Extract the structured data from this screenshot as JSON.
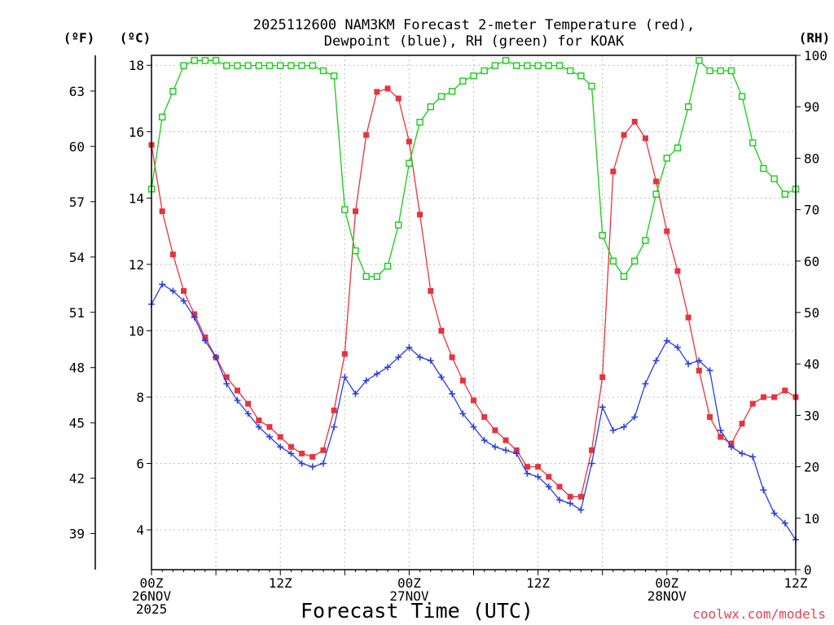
{
  "chart_data": {
    "type": "line",
    "title_line1": "2025112600 NAM3KM Forecast 2-meter Temperature (red),",
    "title_line2": "Dewpoint (blue), RH (green) for KOAK",
    "xlabel": "Forecast Time (UTC)",
    "credit": "coolwx.com/models",
    "units": {
      "fahrenheit": "(ºF)",
      "celsius": "(ºC)",
      "rh": "(RH)"
    },
    "x_range_hours": [
      0,
      60
    ],
    "y_left_celsius": {
      "range": [
        2.8,
        18.3
      ],
      "ticks": [
        "4",
        "6",
        "8",
        "10",
        "12",
        "14",
        "16",
        "18"
      ],
      "tick_values": [
        4,
        6,
        8,
        10,
        12,
        14,
        16,
        18
      ]
    },
    "y_far_left_fahrenheit": {
      "ticks": [
        "39",
        "42",
        "45",
        "48",
        "51",
        "54",
        "57",
        "60",
        "63"
      ],
      "tick_values": [
        39,
        42,
        45,
        48,
        51,
        54,
        57,
        60,
        63
      ]
    },
    "y_right_rh": {
      "range": [
        0,
        100
      ],
      "ticks": [
        "0",
        "10",
        "20",
        "30",
        "40",
        "50",
        "60",
        "70",
        "80",
        "90",
        "100"
      ],
      "tick_values": [
        0,
        10,
        20,
        30,
        40,
        50,
        60,
        70,
        80,
        90,
        100
      ]
    },
    "x_ticks": [
      {
        "hour": 0,
        "lines": [
          "00Z",
          "26NOV",
          "2025"
        ]
      },
      {
        "hour": 12,
        "lines": [
          "12Z"
        ]
      },
      {
        "hour": 24,
        "lines": [
          "00Z",
          "27NOV"
        ]
      },
      {
        "hour": 36,
        "lines": [
          "12Z"
        ]
      },
      {
        "hour": 48,
        "lines": [
          "00Z",
          "28NOV"
        ]
      },
      {
        "hour": 60,
        "lines": [
          "12Z"
        ]
      }
    ],
    "series": [
      {
        "name": "2-meter Temperature",
        "unit": "C",
        "axis": "celsius",
        "color": "#e8333c",
        "marker": "filled-square",
        "x": [
          0,
          1,
          2,
          3,
          4,
          5,
          6,
          7,
          8,
          9,
          10,
          11,
          12,
          13,
          14,
          15,
          16,
          17,
          18,
          19,
          20,
          21,
          22,
          23,
          24,
          25,
          26,
          27,
          28,
          29,
          30,
          31,
          32,
          33,
          34,
          35,
          36,
          37,
          38,
          39,
          40,
          41,
          42,
          43,
          44,
          45,
          46,
          47,
          48,
          49,
          50,
          51,
          52,
          53,
          54,
          55,
          56,
          57,
          58,
          59,
          60
        ],
        "values": [
          15.6,
          13.6,
          12.3,
          11.2,
          10.5,
          9.8,
          9.2,
          8.6,
          8.2,
          7.8,
          7.3,
          7.1,
          6.8,
          6.5,
          6.3,
          6.2,
          6.4,
          7.6,
          9.3,
          13.6,
          15.9,
          17.2,
          17.3,
          17.0,
          15.7,
          13.5,
          11.2,
          10.0,
          9.2,
          8.5,
          7.9,
          7.4,
          7.0,
          6.7,
          6.4,
          5.9,
          5.9,
          5.6,
          5.3,
          5.0,
          5.0,
          6.4,
          8.6,
          14.8,
          15.9,
          16.3,
          15.8,
          14.5,
          13.0,
          11.8,
          10.4,
          8.8,
          7.4,
          6.8,
          6.6,
          7.2,
          7.8,
          8.0,
          8.0,
          8.2,
          8.0
        ]
      },
      {
        "name": "Dewpoint",
        "unit": "C",
        "axis": "celsius",
        "color": "#2b3de0",
        "marker": "plus",
        "x": [
          0,
          1,
          2,
          3,
          4,
          5,
          6,
          7,
          8,
          9,
          10,
          11,
          12,
          13,
          14,
          15,
          16,
          17,
          18,
          19,
          20,
          21,
          22,
          23,
          24,
          25,
          26,
          27,
          28,
          29,
          30,
          31,
          32,
          33,
          34,
          35,
          36,
          37,
          38,
          39,
          40,
          41,
          42,
          43,
          44,
          45,
          46,
          47,
          48,
          49,
          50,
          51,
          52,
          53,
          54,
          55,
          56,
          57,
          58,
          59,
          60
        ],
        "values": [
          10.8,
          11.4,
          11.2,
          10.9,
          10.4,
          9.7,
          9.2,
          8.4,
          7.9,
          7.5,
          7.1,
          6.8,
          6.5,
          6.3,
          6.0,
          5.9,
          6.0,
          7.1,
          8.6,
          8.1,
          8.5,
          8.7,
          8.9,
          9.2,
          9.5,
          9.2,
          9.1,
          8.6,
          8.1,
          7.5,
          7.1,
          6.7,
          6.5,
          6.4,
          6.3,
          5.7,
          5.6,
          5.3,
          4.9,
          4.8,
          4.6,
          6.0,
          7.7,
          7.0,
          7.1,
          7.4,
          8.4,
          9.1,
          9.7,
          9.5,
          9.0,
          9.1,
          8.8,
          7.0,
          6.5,
          6.3,
          6.2,
          5.2,
          4.5,
          4.2,
          3.7
        ]
      },
      {
        "name": "RH",
        "unit": "%",
        "axis": "rh",
        "color": "#18cc18",
        "marker": "open-square",
        "x": [
          0,
          1,
          2,
          3,
          4,
          5,
          6,
          7,
          8,
          9,
          10,
          11,
          12,
          13,
          14,
          15,
          16,
          17,
          18,
          19,
          20,
          21,
          22,
          23,
          24,
          25,
          26,
          27,
          28,
          29,
          30,
          31,
          32,
          33,
          34,
          35,
          36,
          37,
          38,
          39,
          40,
          41,
          42,
          43,
          44,
          45,
          46,
          47,
          48,
          49,
          50,
          51,
          52,
          53,
          54,
          55,
          56,
          57,
          58,
          59,
          60
        ],
        "values": [
          74,
          88,
          93,
          98,
          99,
          99,
          99,
          98,
          98,
          98,
          98,
          98,
          98,
          98,
          98,
          98,
          97,
          96,
          70,
          62,
          57,
          57,
          59,
          67,
          79,
          87,
          90,
          92,
          93,
          95,
          96,
          97,
          98,
          99,
          98,
          98,
          98,
          98,
          98,
          97,
          96,
          94,
          65,
          60,
          57,
          60,
          64,
          73,
          80,
          82,
          90,
          99,
          97,
          97,
          97,
          92,
          83,
          78,
          76,
          73,
          74
        ]
      }
    ]
  }
}
